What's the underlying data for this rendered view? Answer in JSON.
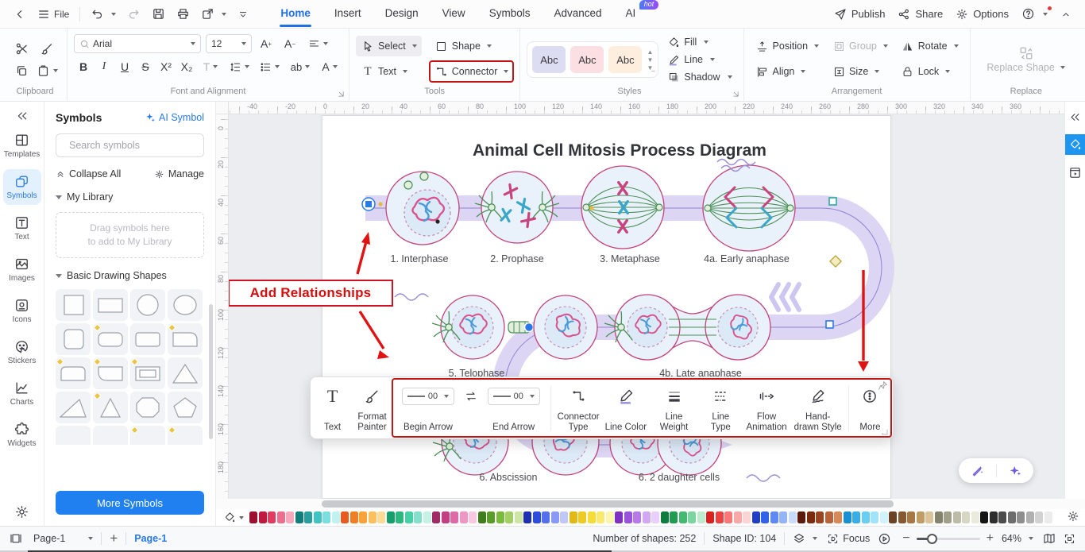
{
  "menubar": {
    "file_label": "File",
    "tabs": [
      "Home",
      "Insert",
      "Design",
      "View",
      "Symbols",
      "Advanced",
      "AI"
    ],
    "ai_badge": "hot",
    "publish": "Publish",
    "share": "Share",
    "options": "Options"
  },
  "ribbon": {
    "clipboard": {
      "label": "Clipboard"
    },
    "font": {
      "label": "Font and Alignment",
      "family": "Arial",
      "size": "12",
      "bold": "B",
      "italic": "I",
      "underline": "U",
      "strike": "S",
      "superscript": "X²",
      "subscript": "X₂",
      "textcolor": "T",
      "highlight": "ab",
      "fontcolor": "A"
    },
    "tools": {
      "label": "Tools",
      "select": "Select",
      "shape": "Shape",
      "text": "Text",
      "connector": "Connector"
    },
    "styles": {
      "label": "Styles",
      "samples": [
        "Abc",
        "Abc",
        "Abc"
      ],
      "sample_colors": [
        "#dcdcf2",
        "#fbdfe2",
        "#fdeedd"
      ]
    },
    "effects": {
      "fill": "Fill",
      "line": "Line",
      "shadow": "Shadow"
    },
    "arrangement": {
      "label": "Arrangement",
      "position": "Position",
      "group": "Group",
      "rotate": "Rotate",
      "align": "Align",
      "size": "Size",
      "lock": "Lock"
    },
    "replace": {
      "label": "Replace",
      "button": "Replace Shape"
    }
  },
  "sidebar": {
    "rail": [
      "Templates",
      "Symbols",
      "Text",
      "Images",
      "Icons",
      "Stickers",
      "Charts",
      "Widgets"
    ],
    "panel": {
      "title": "Symbols",
      "ai_symbol": "AI Symbol",
      "search_placeholder": "Search symbols",
      "collapse_all": "Collapse All",
      "manage": "Manage",
      "my_library": "My Library",
      "drag_hint_1": "Drag symbols here",
      "drag_hint_2": "to add to My Library",
      "basic_shapes": "Basic Drawing Shapes",
      "shapes": [
        {
          "name": "square",
          "premium": false
        },
        {
          "name": "rectangle",
          "premium": false
        },
        {
          "name": "circle",
          "premium": false
        },
        {
          "name": "ellipse",
          "premium": false
        },
        {
          "name": "rounded-square",
          "premium": false
        },
        {
          "name": "rounded-rectangle",
          "premium": true
        },
        {
          "name": "rounded-rectangle-alt",
          "premium": false
        },
        {
          "name": "snip-corner-rectangle",
          "premium": true
        },
        {
          "name": "half-rounded-rectangle",
          "premium": true
        },
        {
          "name": "corner-rounded-rectangle",
          "premium": true
        },
        {
          "name": "frame-rectangle",
          "premium": true
        },
        {
          "name": "triangle",
          "premium": false
        },
        {
          "name": "right-triangle",
          "premium": false
        },
        {
          "name": "isosceles-triangle",
          "premium": true
        },
        {
          "name": "rounded-octagon",
          "premium": false
        },
        {
          "name": "pentagon",
          "premium": false
        },
        {
          "name": "partial-shape-1",
          "premium": false
        },
        {
          "name": "partial-shape-2",
          "premium": false
        },
        {
          "name": "partial-shape-3",
          "premium": true
        },
        {
          "name": "partial-shape-4",
          "premium": true
        }
      ],
      "more_symbols": "More Symbols"
    }
  },
  "canvas": {
    "title": "Animal Cell Mitosis Process Diagram",
    "annotation": "Add Relationships",
    "phase_labels": [
      "1. Interphase",
      "2. Prophase",
      "3. Metaphase",
      "4a. Early anaphase",
      "5. Telophase",
      "4b. Late anaphase",
      "6. Abscission",
      "6. 2 daughter cells"
    ],
    "ruler": {
      "top_start": -40,
      "top_end": 360,
      "left_start": 0,
      "left_end": 200,
      "step": 20
    }
  },
  "floating_toolbar": {
    "items": [
      "Text",
      "Format Painter",
      "Begin Arrow",
      "End Arrow",
      "Connector Type",
      "Line Color",
      "Line Weight",
      "Line Type",
      "Flow Animation",
      "Hand-drawn Style",
      "More"
    ],
    "begin_arrow_value": "00",
    "end_arrow_value": "00"
  },
  "palette": {
    "colors": [
      "#9c0f2e",
      "#c01940",
      "#e23b60",
      "#ee6e8e",
      "#f7a8bd",
      "#157c7c",
      "#289e9e",
      "#3fc3c3",
      "#7cdede",
      "#c0f2f2",
      "#e85a1f",
      "#f07e22",
      "#f8a33a",
      "#fbbf5e",
      "#fddb96",
      "#14a06a",
      "#2bb77e",
      "#48cfa6",
      "#84e0cb",
      "#c6f2e6",
      "#a12a66",
      "#c33e82",
      "#e068a6",
      "#ef96c4",
      "#f8c8e0",
      "#417c1e",
      "#599d28",
      "#7abb3c",
      "#a3d066",
      "#cde6a4",
      "#2030b2",
      "#2c4ce2",
      "#5570ec",
      "#8a9af4",
      "#c0c8fa",
      "#e2b814",
      "#edca24",
      "#f5dc3a",
      "#fae96e",
      "#fdf5ae",
      "#7e30c2",
      "#9b52da",
      "#b77ae8",
      "#d2a8f2",
      "#e8d0fa",
      "#0e7c3e",
      "#209c50",
      "#42ba70",
      "#7cd49e",
      "#bceccc",
      "#dc1f1f",
      "#ee4242",
      "#f87878",
      "#fba8a8",
      "#fdd4d4",
      "#1f40c6",
      "#3162e8",
      "#5e88f2",
      "#95b4f8",
      "#cadcfc",
      "#5c1a0a",
      "#7c2a0e",
      "#9c4420",
      "#ba6238",
      "#d68a5a",
      "#1a90d2",
      "#38aee8",
      "#68cef4",
      "#a0e4fa",
      "#d0f3fd",
      "#6c4224",
      "#885832",
      "#a67846",
      "#c09c66",
      "#dcc498",
      "#83836c",
      "#a0a08a",
      "#bcbca8",
      "#d6d6c4",
      "#eaeade",
      "#151515",
      "#2e2e2e",
      "#4c4c4c",
      "#6d6d6d",
      "#8e8e8e",
      "#b0b0b0",
      "#d2d2d2",
      "#ececec"
    ]
  },
  "statusbar": {
    "page_selector": "Page-1",
    "page_tab": "Page-1",
    "shapes_count": "Number of shapes: 252",
    "shape_id": "Shape ID: 104",
    "focus": "Focus",
    "zoom": "64%"
  },
  "colors": {
    "accent": "#2979e8",
    "annotation": "#d40f0f",
    "band": "#dcd6f4",
    "cell_stroke": "#c2427a"
  }
}
